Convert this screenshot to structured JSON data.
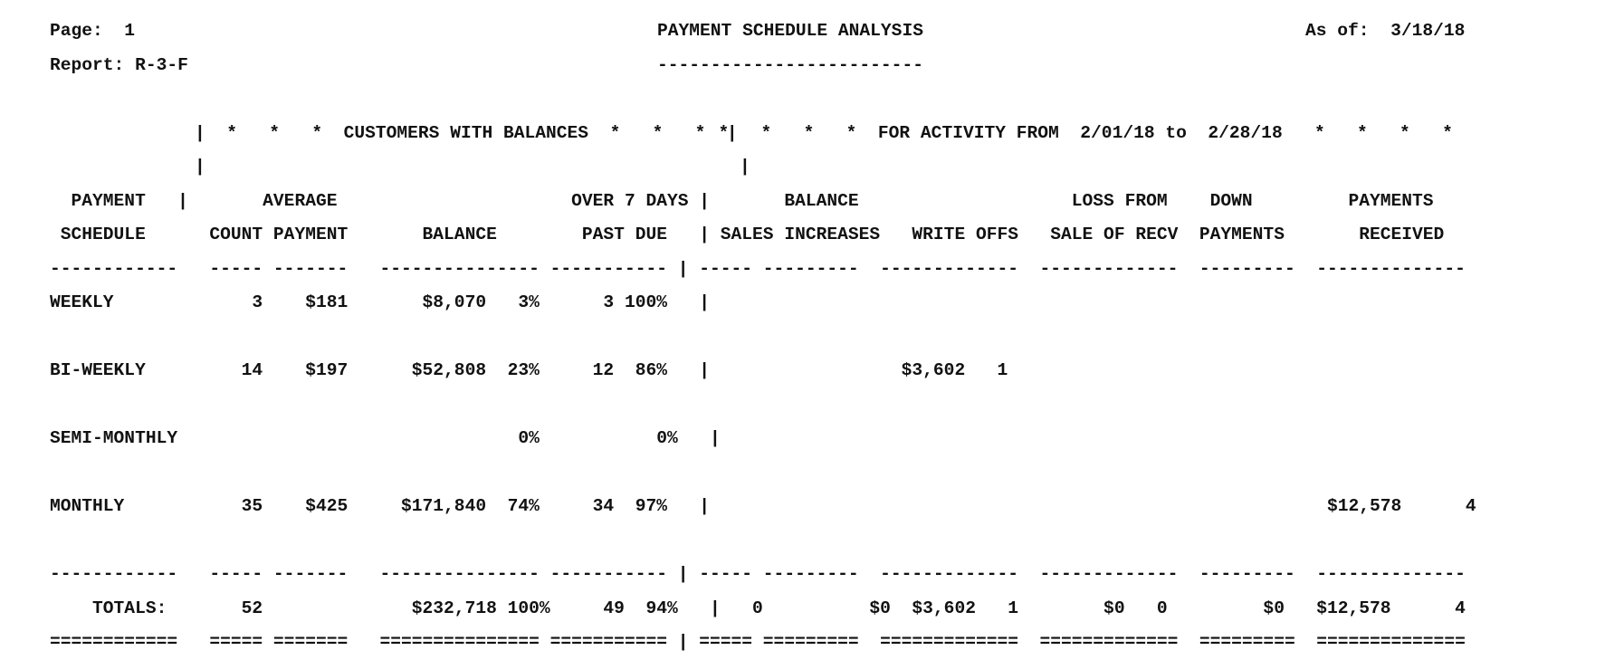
{
  "header": {
    "page_line": "Page:  1",
    "title": "PAYMENT SCHEDULE ANALYSIS",
    "as_of_line": "As of:  3/18/18",
    "report_line": "Report: R-3-F",
    "title_underline": "-------------------------"
  },
  "banner": {
    "left": "|  *   *   *  CUSTOMERS WITH BALANCES  *   *   *  |",
    "right": "  *   *   *   *  FOR ACTIVITY FROM  2/01/18 to  2/28/18   *   *   *   *",
    "left_spacer": "|",
    "right_spacer": "|"
  },
  "column_headers": {
    "row1": "  PAYMENT   |       AVERAGE                      OVER 7 DAYS |       BALANCE                    LOSS FROM    DOWN         PAYMENTS",
    "row2": " SCHEDULE      COUNT PAYMENT       BALANCE        PAST DUE   | SALES INCREASES   WRITE OFFS   SALE OF RECV  PAYMENTS       RECEIVED",
    "rule": "------------   ----- -------   --------------- ----------- | ----- ---------  -------------  -------------  ---------  --------------"
  },
  "rows": [
    {
      "schedule": "WEEKLY",
      "line": "WEEKLY             3    $181       $8,070   3%      3 100%   |"
    },
    {
      "schedule": "BI-WEEKLY",
      "line": "BI-WEEKLY         14    $197      $52,808  23%     12  86%   |                  $3,602   1"
    },
    {
      "schedule": "SEMI-MONTHLY",
      "line": "SEMI-MONTHLY                                0%           0%   |"
    },
    {
      "schedule": "MONTHLY",
      "line": "MONTHLY           35    $425     $171,840  74%     34  97%   |                                                          $12,578      4"
    }
  ],
  "totals": {
    "rule": "------------   ----- -------   --------------- ----------- | ----- ---------  -------------  -------------  ---------  --------------",
    "line": "    TOTALS:       52              $232,718 100%     49  94%   |   0          $0  $3,602   1        $0   0         $0   $12,578      4",
    "double_rule": "============   ===== =======   =============== =========== | ===== =========  =============  =============  =========  =============="
  }
}
